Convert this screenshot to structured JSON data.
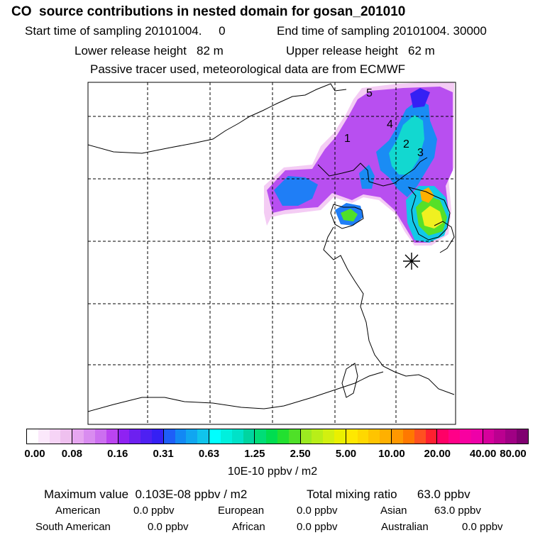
{
  "header": {
    "title": "CO  source contributions in nested domain for gosan_201010",
    "line_time_start": "Start time of sampling 20101004.     0",
    "line_time_end": "End time of sampling 20101004. 30000",
    "line_lower": "Lower release height   82 m",
    "line_upper": "Upper release height   62 m",
    "line_tracer": "Passive tracer used, meteorological data are from ECMWF"
  },
  "map": {
    "station_marker": "asterisk-icon",
    "labels": [
      "1",
      "2",
      "3",
      "4",
      "5"
    ],
    "land_outline_color": "#000000",
    "grid_style": "dashed"
  },
  "colorbar": {
    "tick_labels": [
      "0.00",
      "0.08",
      "0.16",
      "0.31",
      "0.63",
      "1.25",
      "2.50",
      "5.00",
      "10.00",
      "20.00",
      "40.00",
      "80.00"
    ],
    "colors": [
      [
        "#ffffff",
        "#fbe8fb",
        "#f6d4f6",
        "#efc0ef"
      ],
      [
        "#e6a6f0",
        "#d98cf0",
        "#cc6ff0",
        "#bb44f0"
      ],
      [
        "#8f22f2",
        "#6d20f0",
        "#4e20f2",
        "#3520f4"
      ],
      [
        "#1e5ef8",
        "#1288f4",
        "#10a6f0",
        "#10c4ec"
      ],
      [
        "#00ffff",
        "#00f0dd",
        "#00e2c8",
        "#00d5a0"
      ],
      [
        "#00dd77",
        "#00dd50",
        "#22e030",
        "#4fe028"
      ],
      [
        "#9cea20",
        "#b8ee18",
        "#d2f010",
        "#eaf000"
      ],
      [
        "#ffe800",
        "#ffd800",
        "#ffc400",
        "#ffb000"
      ],
      [
        "#ff9800",
        "#ff7800",
        "#ff5020",
        "#ff2030"
      ],
      [
        "#ff0066",
        "#ff0088",
        "#f800a0",
        "#ee00a8"
      ],
      [
        "#d6009c",
        "#bb0090",
        "#a00084",
        "#800070"
      ]
    ],
    "unit": "10E-10 ppbv / m2"
  },
  "stats": {
    "max_value": "Maximum value  0.103E-08 ppbv / m2",
    "total_mixing": "Total mixing ratio      63.0 ppbv",
    "american_label": "American",
    "american_value": "0.0 ppbv",
    "european_label": "European",
    "european_value": "0.0 ppbv",
    "asian_label": "Asian",
    "asian_value": "63.0 ppbv",
    "south_american_label": "South American",
    "south_american_value": "0.0 ppbv",
    "african_label": "African",
    "african_value": "0.0 ppbv",
    "australian_label": "Australian",
    "australian_value": "0.0 ppbv"
  }
}
